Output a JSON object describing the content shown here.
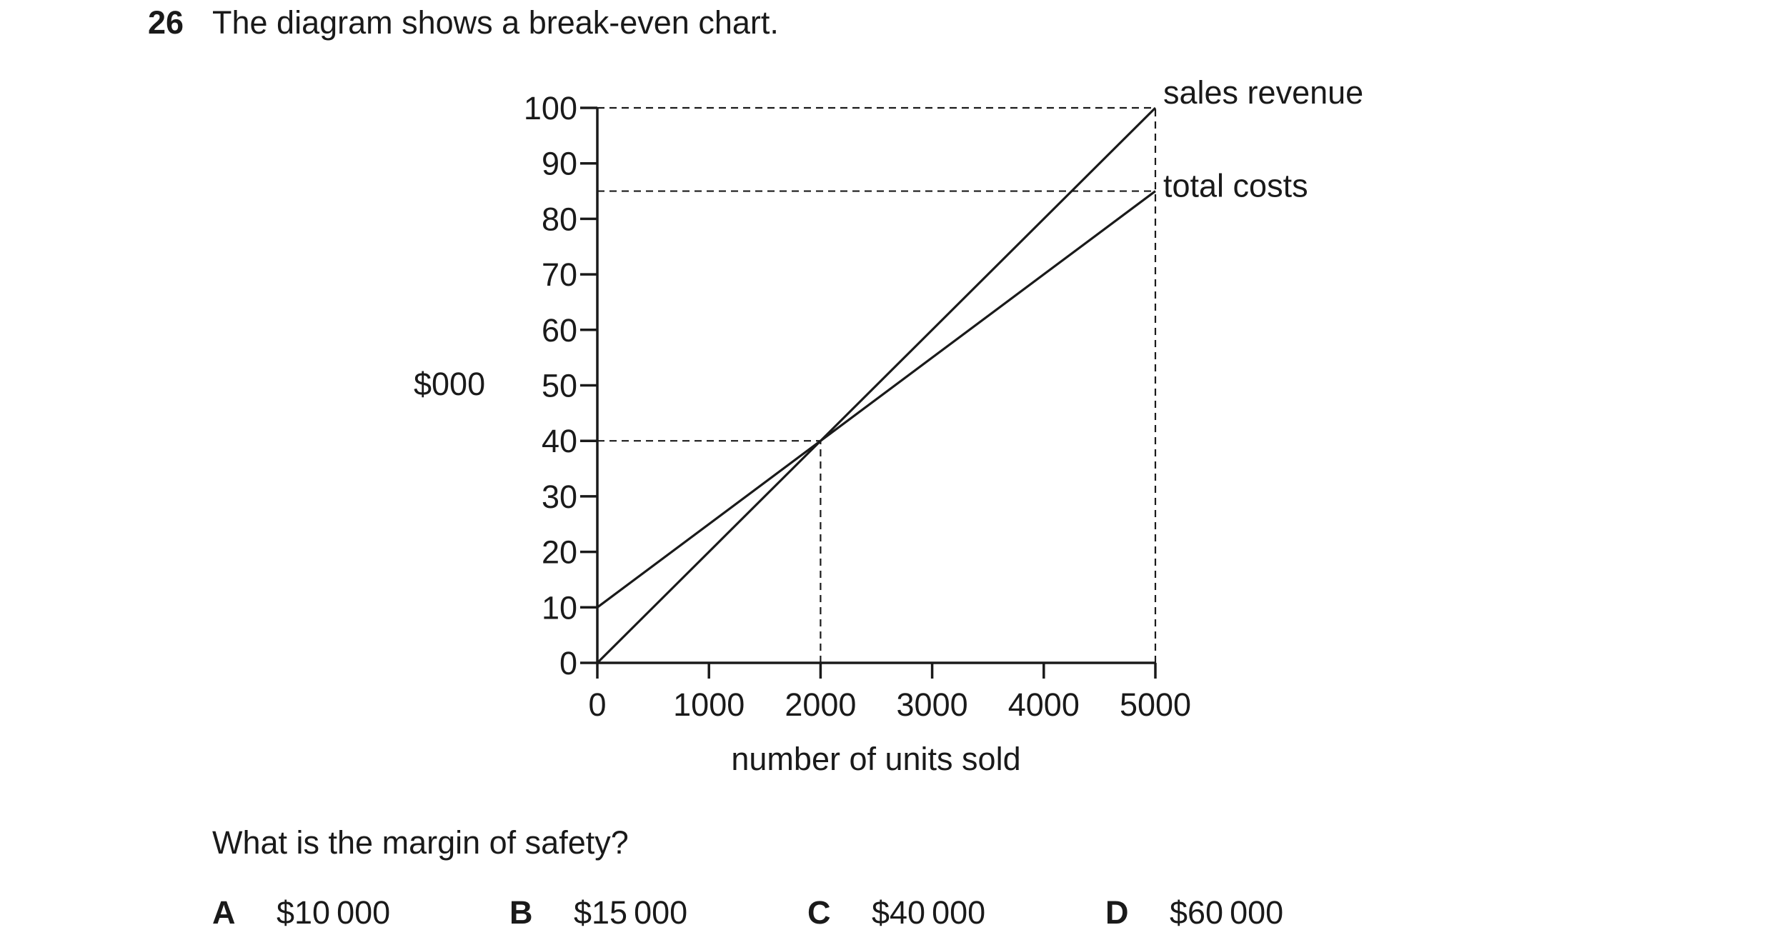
{
  "question": {
    "number": "26",
    "stem": "The diagram shows a break-even chart.",
    "prompt": "What is the margin of safety?",
    "options": [
      {
        "letter": "A",
        "value": "$10 000"
      },
      {
        "letter": "B",
        "value": "$15 000"
      },
      {
        "letter": "C",
        "value": "$40 000"
      },
      {
        "letter": "D",
        "value": "$60 000"
      }
    ]
  },
  "chart_data": {
    "type": "line",
    "title": "",
    "xlabel": "number of units sold",
    "ylabel": "$000",
    "xlim": [
      0,
      5000
    ],
    "ylim": [
      0,
      100
    ],
    "x_ticks": [
      0,
      1000,
      2000,
      3000,
      4000,
      5000
    ],
    "y_ticks": [
      0,
      10,
      20,
      30,
      40,
      50,
      60,
      70,
      80,
      90,
      100
    ],
    "grid": false,
    "legend": "direct labels at line ends",
    "series": [
      {
        "name": "sales revenue",
        "x": [
          0,
          5000
        ],
        "y": [
          0,
          100
        ]
      },
      {
        "name": "total costs",
        "x": [
          0,
          5000
        ],
        "y": [
          10,
          85
        ]
      }
    ],
    "guide_lines": [
      {
        "from": [
          0,
          100
        ],
        "to": [
          5000,
          100
        ]
      },
      {
        "from": [
          0,
          85
        ],
        "to": [
          5000,
          85
        ]
      },
      {
        "from": [
          0,
          40
        ],
        "to": [
          2000,
          40
        ]
      },
      {
        "from": [
          2000,
          0
        ],
        "to": [
          2000,
          40
        ]
      },
      {
        "from": [
          5000,
          0
        ],
        "to": [
          5000,
          100
        ]
      }
    ],
    "line_color": "#1a1a1a"
  }
}
